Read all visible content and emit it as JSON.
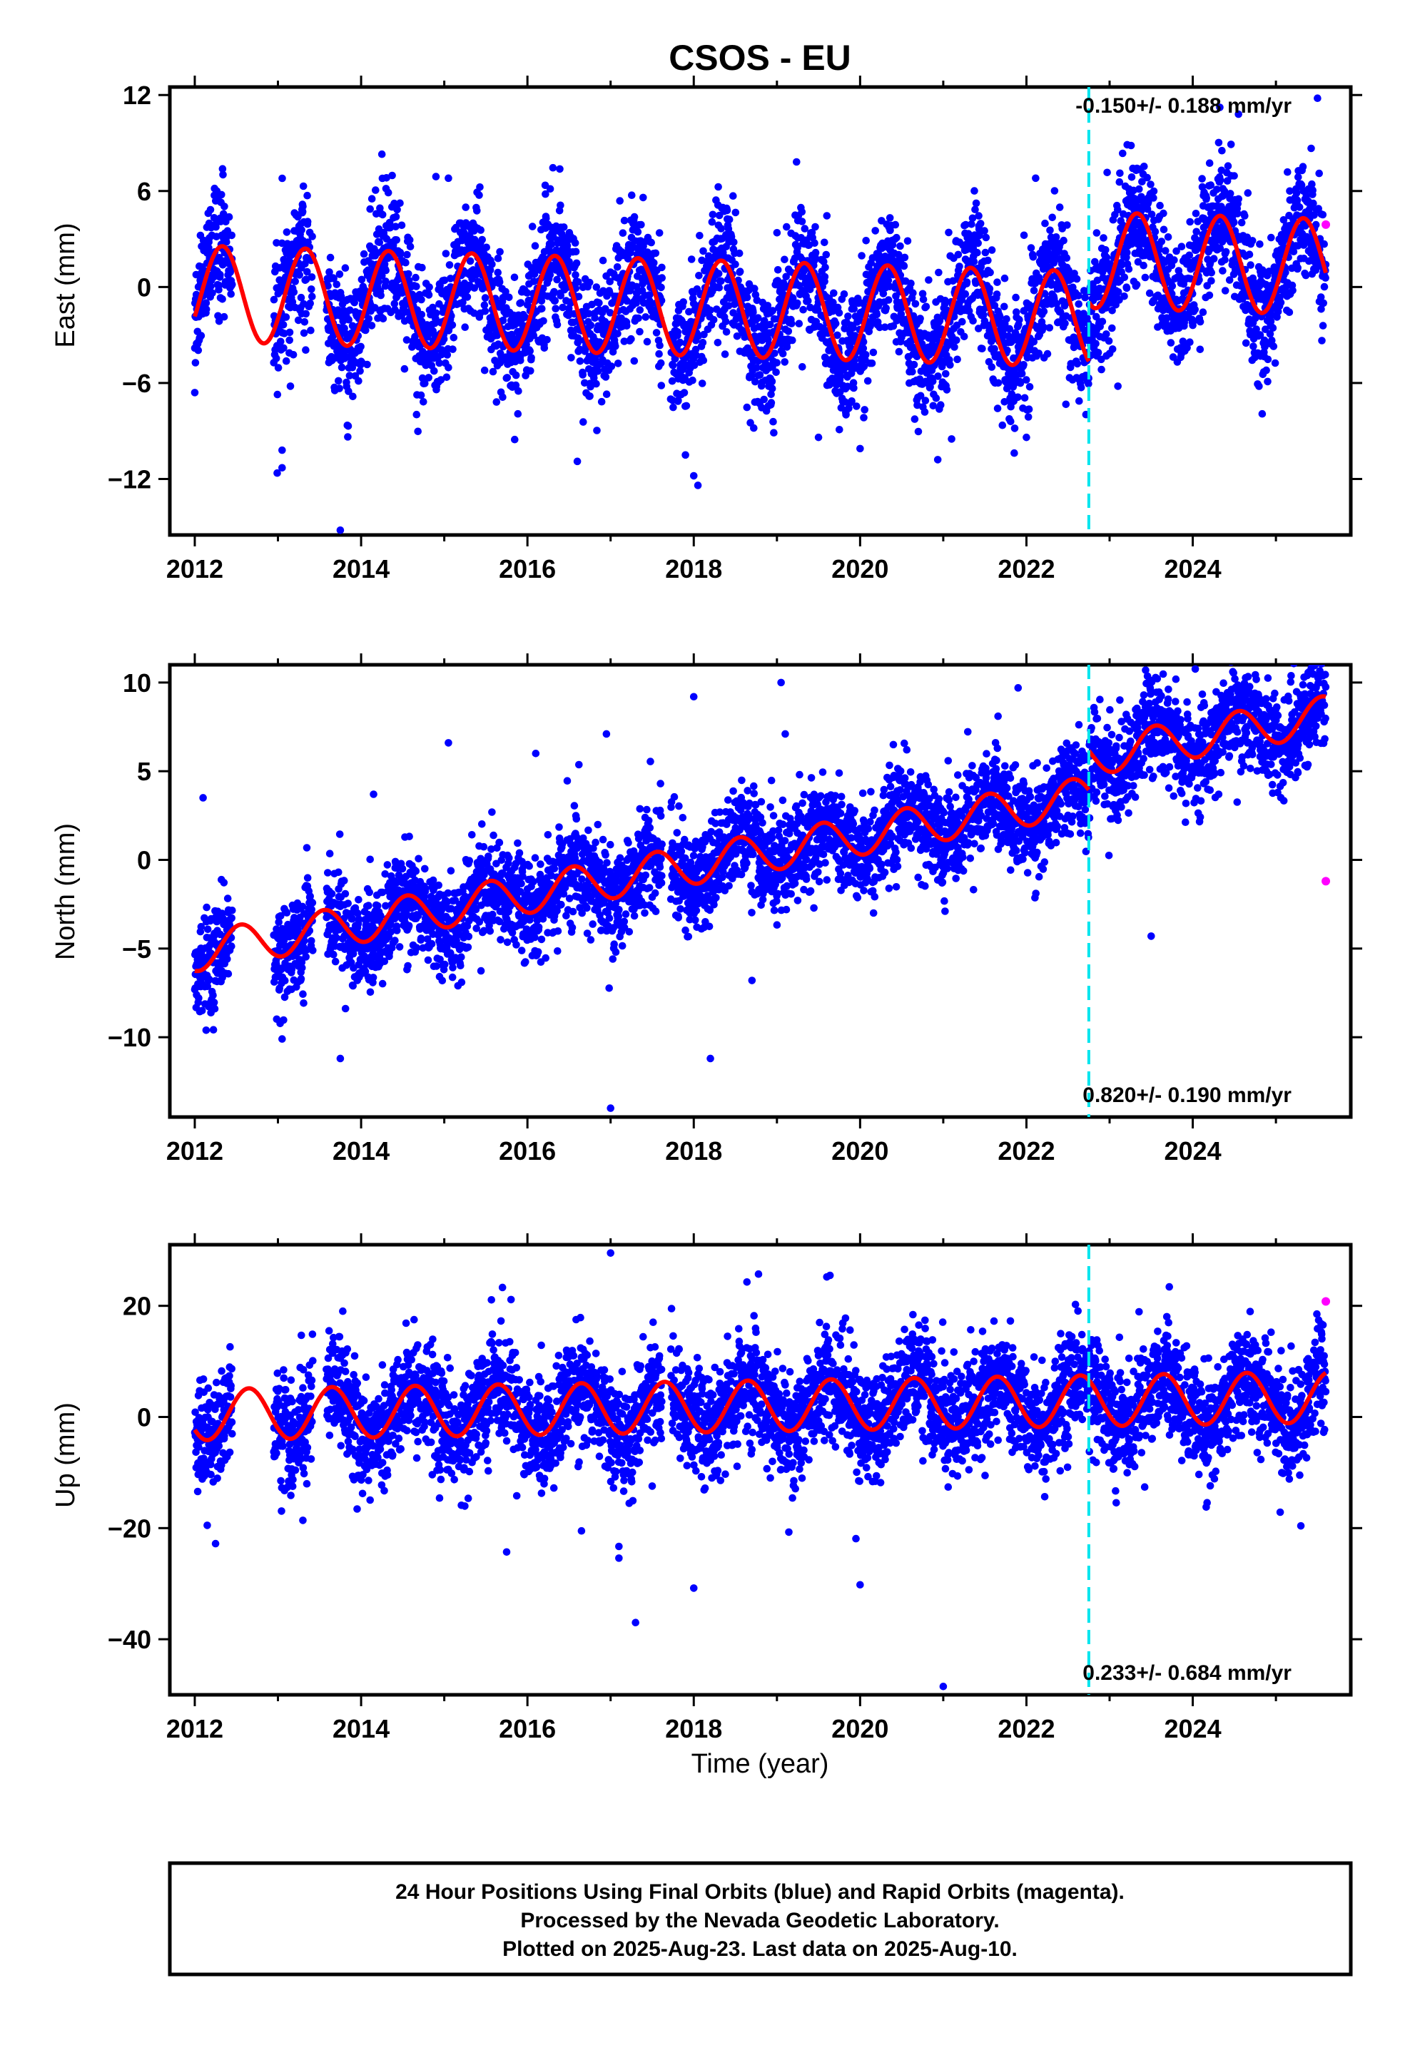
{
  "title": "CSOS - EU",
  "caption_lines": [
    "24 Hour Positions Using Final Orbits (blue) and Rapid Orbits (magenta).",
    "Processed by the Nevada Geodetic Laboratory.",
    "Plotted on 2025-Aug-23. Last data on 2025-Aug-10."
  ],
  "colors": {
    "final_orbits": "#0000ff",
    "rapid_orbits": "#ff00ff",
    "model_fit": "#ff0000",
    "equipment_change": "#00e5ee"
  },
  "chart_data": [
    {
      "type": "scatter",
      "panel": "east",
      "ylabel": "East (mm)",
      "xlabel": "",
      "xlim": [
        2011.7,
        2025.9
      ],
      "ylim": [
        -15.5,
        12.5
      ],
      "xticks": [
        2012,
        2014,
        2016,
        2018,
        2020,
        2022,
        2024
      ],
      "yticks": [
        -12,
        -6,
        0,
        6,
        12
      ],
      "rate_text": "-0.150+/- 0.188 mm/yr",
      "rate_position": "top-right",
      "equipment_change_year": 2022.75,
      "rapid_points": [
        [
          2025.6,
          3.9
        ]
      ],
      "outliers": [
        [
          2013.05,
          -10.2
        ],
        [
          2013.05,
          -11.3
        ],
        [
          2013.15,
          -6.2
        ],
        [
          2014.25,
          8.3
        ],
        [
          2014.9,
          6.9
        ],
        [
          2015.05,
          6.8
        ],
        [
          2017.9,
          -10.5
        ],
        [
          2018.0,
          -11.8
        ],
        [
          2018.05,
          -12.4
        ],
        [
          2019.3,
          4.7
        ],
        [
          2019.5,
          -9.4
        ],
        [
          2020.0,
          -10.1
        ],
        [
          2021.1,
          -9.5
        ],
        [
          2023.1,
          -6.2
        ],
        [
          2024.55,
          10.8
        ],
        [
          2024.85,
          -3.5
        ],
        [
          2025.5,
          11.8
        ],
        [
          2013.75,
          -15.2
        ],
        [
          2012.0,
          -6.6
        ],
        [
          2016.6,
          -10.9
        ],
        [
          2022.0,
          -9.4
        ]
      ],
      "series": [
        {
          "name": "",
          "model": {
            "segments": [
              {
                "start": 2012.0,
                "end": 2022.75,
                "offset": -0.4,
                "rate": -0.15,
                "amp": 3.0,
                "phase": 0.08
              },
              {
                "start": 2022.75,
                "end": 2025.6,
                "offset": 3.3,
                "rate": -0.15,
                "amp": 3.0,
                "phase": 0.08
              }
            ],
            "noise": 1.9,
            "gaps": [
              [
                2012.45,
                2012.95
              ],
              [
                2013.42,
                2013.58
              ],
              [
                2017.62,
                2017.72
              ]
            ]
          }
        }
      ]
    },
    {
      "type": "scatter",
      "panel": "north",
      "ylabel": "North (mm)",
      "xlabel": "",
      "xlim": [
        2011.7,
        2025.9
      ],
      "ylim": [
        -14.5,
        11.0
      ],
      "xticks": [
        2012,
        2014,
        2016,
        2018,
        2020,
        2022,
        2024
      ],
      "yticks": [
        -10,
        -5,
        0,
        5,
        10
      ],
      "rate_text": "0.820+/- 0.190 mm/yr",
      "rate_position": "bottom-right",
      "equipment_change_year": 2022.75,
      "rapid_points": [
        [
          2025.6,
          -1.2
        ]
      ],
      "outliers": [
        [
          2012.1,
          3.5
        ],
        [
          2013.05,
          -10.1
        ],
        [
          2013.75,
          -11.2
        ],
        [
          2014.15,
          3.7
        ],
        [
          2015.05,
          6.6
        ],
        [
          2016.1,
          6.0
        ],
        [
          2016.95,
          7.1
        ],
        [
          2017.0,
          -14.0
        ],
        [
          2017.6,
          4.3
        ],
        [
          2018.0,
          9.2
        ],
        [
          2018.2,
          -11.2
        ],
        [
          2018.7,
          -6.8
        ],
        [
          2019.05,
          10.0
        ],
        [
          2019.1,
          7.1
        ],
        [
          2020.4,
          6.5
        ],
        [
          2021.9,
          9.7
        ],
        [
          2023.2,
          8.2
        ],
        [
          2024.1,
          8.6
        ],
        [
          2025.4,
          10.6
        ],
        [
          2023.5,
          -4.3
        ]
      ],
      "series": [
        {
          "name": "",
          "model": {
            "segments": [
              {
                "start": 2012.0,
                "end": 2022.75,
                "offset": -5.2,
                "rate": 0.82,
                "amp": 1.1,
                "phase": 0.3
              },
              {
                "start": 2022.75,
                "end": 2025.6,
                "offset": -3.0,
                "rate": 0.82,
                "amp": 1.1,
                "phase": 0.3
              }
            ],
            "noise": 1.35,
            "gaps": [
              [
                2012.45,
                2012.95
              ],
              [
                2013.42,
                2013.58
              ],
              [
                2017.62,
                2017.72
              ]
            ]
          }
        }
      ]
    },
    {
      "type": "scatter",
      "panel": "up",
      "ylabel": "Up (mm)",
      "xlabel": "Time (year)",
      "xlim": [
        2011.7,
        2025.9
      ],
      "ylim": [
        -50.0,
        31.0
      ],
      "xticks": [
        2012,
        2014,
        2016,
        2018,
        2020,
        2022,
        2024
      ],
      "yticks": [
        -40,
        -20,
        0,
        20
      ],
      "rate_text": "0.233+/- 0.684 mm/yr",
      "rate_position": "bottom-right",
      "equipment_change_year": 2022.75,
      "rapid_points": [
        [
          2025.6,
          20.8
        ]
      ],
      "outliers": [
        [
          2012.15,
          -19.5
        ],
        [
          2012.25,
          -22.8
        ],
        [
          2013.3,
          -18.6
        ],
        [
          2015.75,
          -24.3
        ],
        [
          2016.65,
          -20.5
        ],
        [
          2017.0,
          29.5
        ],
        [
          2017.1,
          -23.3
        ],
        [
          2017.3,
          -37.0
        ],
        [
          2017.1,
          -25.4
        ],
        [
          2018.0,
          -30.8
        ],
        [
          2019.6,
          25.2
        ],
        [
          2019.95,
          -21.9
        ],
        [
          2020.0,
          -30.2
        ],
        [
          2021.0,
          -48.5
        ],
        [
          2025.3,
          -19.6
        ],
        [
          2015.7,
          23.3
        ]
      ],
      "series": [
        {
          "name": "",
          "model": {
            "segments": [
              {
                "start": 2012.0,
                "end": 2025.6,
                "offset": 0.4,
                "rate": 0.233,
                "amp": 4.6,
                "phase": 0.4
              }
            ],
            "noise": 4.8,
            "gaps": [
              [
                2012.45,
                2012.95
              ],
              [
                2013.42,
                2013.58
              ],
              [
                2017.62,
                2017.72
              ]
            ]
          }
        }
      ]
    }
  ]
}
